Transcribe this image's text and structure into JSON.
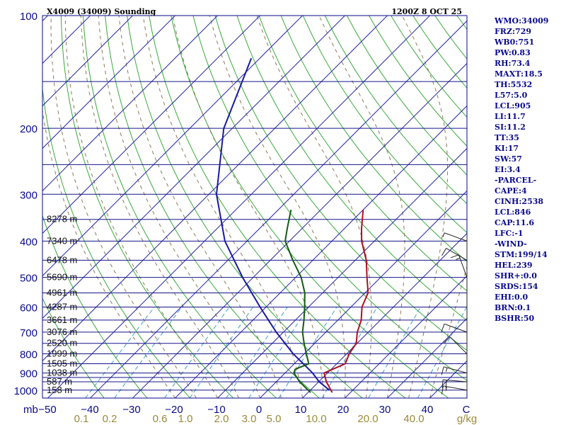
{
  "colors": {
    "frame": "#0a0a8c",
    "isobar": "#14148c",
    "isotherm": "#2a2aa8",
    "dry_adiabat": "#3aaa3a",
    "moist_adiabat": "#8a7a5a",
    "mixing_ratio": "#3fa0d0",
    "temperature": "#b01020",
    "dewpoint": "#145a14",
    "parcel": "#1a1aa0",
    "wind": "#222222",
    "tick_labels": "#0a0a8c",
    "mixing_labels": "#9a8a3a"
  },
  "header": {
    "title": "X4009 (34009) Sounding",
    "time": "1200Z  8 OCT 25"
  },
  "chart_data": {
    "type": "skew-t",
    "pressure_ticks": [
      100,
      200,
      300,
      400,
      500,
      600,
      700,
      800,
      900,
      1000
    ],
    "pressure_lines": [
      100,
      150,
      200,
      250,
      300,
      350,
      400,
      450,
      500,
      550,
      600,
      650,
      700,
      750,
      800,
      850,
      900,
      925,
      950,
      1000
    ],
    "temperature_ticks": [
      -50,
      -40,
      -30,
      -20,
      -10,
      0,
      10,
      20,
      30,
      40,
      50
    ],
    "temperature_tick_labels": [
      "−50",
      "−40",
      "−30",
      "−20",
      "−10",
      "0",
      "10",
      "20",
      "30",
      "40",
      "C"
    ],
    "pressure_unit_label": "mb",
    "mixing_ratio_labels": [
      "0.1",
      "0.2",
      "0.6",
      "1.0",
      "2.0",
      "3.0",
      "5.0",
      "10.0",
      "20.0",
      "40.0",
      "g/kg"
    ],
    "mixing_ratio_values": [
      0.1,
      0.2,
      0.6,
      1.0,
      2.0,
      3.0,
      5.0,
      10.0,
      20.0,
      40.0
    ],
    "height_labels": [
      {
        "p": 350,
        "text": "8278 m"
      },
      {
        "p": 400,
        "text": "7340 m"
      },
      {
        "p": 450,
        "text": "6478 m"
      },
      {
        "p": 500,
        "text": "5690 m"
      },
      {
        "p": 550,
        "text": "4961 m"
      },
      {
        "p": 600,
        "text": "4287 m"
      },
      {
        "p": 650,
        "text": "3661 m"
      },
      {
        "p": 700,
        "text": "3076 m"
      },
      {
        "p": 750,
        "text": "2520 m"
      },
      {
        "p": 800,
        "text": "1999 m"
      },
      {
        "p": 850,
        "text": "1505 m"
      },
      {
        "p": 900,
        "text": "1038 m"
      },
      {
        "p": 950,
        "text": "587 m"
      },
      {
        "p": 1000,
        "text": "158 m"
      }
    ],
    "temperature_profile": [
      {
        "p": 1015,
        "t": 15.7
      },
      {
        "p": 950,
        "t": 11.8
      },
      {
        "p": 900,
        "t": 9.2
      },
      {
        "p": 850,
        "t": 12.0
      },
      {
        "p": 800,
        "t": 10.6
      },
      {
        "p": 750,
        "t": 9.8
      },
      {
        "p": 700,
        "t": 7.4
      },
      {
        "p": 650,
        "t": 5.5
      },
      {
        "p": 600,
        "t": 2.6
      },
      {
        "p": 550,
        "t": 0.7
      },
      {
        "p": 500,
        "t": -3.2
      },
      {
        "p": 450,
        "t": -7.4
      },
      {
        "p": 400,
        "t": -13.0
      },
      {
        "p": 370,
        "t": -16.0
      },
      {
        "p": 330,
        "t": -20.0
      }
    ],
    "dewpoint_profile": [
      {
        "p": 1015,
        "t": 10.6
      },
      {
        "p": 950,
        "t": 5.5
      },
      {
        "p": 900,
        "t": 2.1
      },
      {
        "p": 880,
        "t": 1.5
      },
      {
        "p": 850,
        "t": 3.4
      },
      {
        "p": 800,
        "t": 0.5
      },
      {
        "p": 750,
        "t": -2.5
      },
      {
        "p": 700,
        "t": -5.5
      },
      {
        "p": 650,
        "t": -8.0
      },
      {
        "p": 600,
        "t": -10.9
      },
      {
        "p": 550,
        "t": -14.2
      },
      {
        "p": 500,
        "t": -18.7
      },
      {
        "p": 450,
        "t": -24.7
      },
      {
        "p": 400,
        "t": -31.0
      },
      {
        "p": 370,
        "t": -33.5
      },
      {
        "p": 330,
        "t": -37.0
      }
    ],
    "parcel_profile": [
      {
        "p": 1000,
        "t": 14.5
      },
      {
        "p": 950,
        "t": 10.1
      },
      {
        "p": 900,
        "t": 6.5
      },
      {
        "p": 850,
        "t": 2.1
      },
      {
        "p": 800,
        "t": -2.6
      },
      {
        "p": 700,
        "t": -11.7
      },
      {
        "p": 600,
        "t": -21.4
      },
      {
        "p": 500,
        "t": -32.5
      },
      {
        "p": 400,
        "t": -45.2
      },
      {
        "p": 300,
        "t": -58.2
      },
      {
        "p": 200,
        "t": -72.0
      },
      {
        "p": 130,
        "t": -82.0
      }
    ],
    "wind_profile": [
      {
        "p": 1000,
        "dir": 280,
        "spd": 15
      },
      {
        "p": 950,
        "dir": 275,
        "spd": 20
      },
      {
        "p": 900,
        "dir": 285,
        "spd": 15
      },
      {
        "p": 800,
        "dir": 315,
        "spd": 10
      },
      {
        "p": 700,
        "dir": 290,
        "spd": 10
      },
      {
        "p": 500,
        "dir": 340,
        "spd": 15
      },
      {
        "p": 450,
        "dir": 300,
        "spd": 10
      },
      {
        "p": 400,
        "dir": 290,
        "spd": 5
      }
    ]
  },
  "indices": [
    "WMO:34009",
    "FRZ:729",
    "WB0:751",
    "PW:0.83",
    "RH:73.4",
    "MAXT:18.5",
    "TH:5532",
    "L57:5.0",
    "LCL:905",
    "LI:11.7",
    "SI:11.2",
    "TT:35",
    "KI:17",
    "SW:57",
    "EI:3.4",
    "-PARCEL-",
    "CAPE:4",
    "CINH:2538",
    "LCL:846",
    "CAP:11.6",
    "LFC:-1",
    "-WIND-",
    "STM:199/14",
    "HEL:239",
    "SHR+:0.0",
    "SRDS:154",
    "EHI:0.0",
    "BRN:0.1",
    "BSHR:50"
  ]
}
